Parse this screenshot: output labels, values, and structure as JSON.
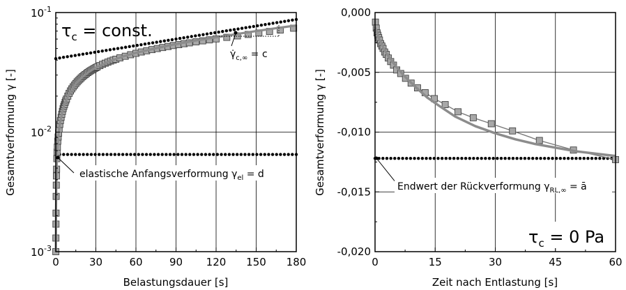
{
  "chart_data": [
    {
      "type": "scatter",
      "panel": "left",
      "xlabel": "Belastungsdauer [s]",
      "ylabel": "Gesamtverformung γ [-]",
      "xlim": [
        0,
        180
      ],
      "ylim": [
        0.001,
        0.1
      ],
      "yscale": "log",
      "grid": true,
      "x_ticks": [
        0,
        30,
        60,
        90,
        120,
        150,
        180
      ],
      "x_tick_labels": [
        "0",
        "30",
        "60",
        "90",
        "120",
        "150",
        "180"
      ],
      "y_ticks": [
        0.001,
        0.01,
        0.1
      ],
      "y_tick_labels": [
        {
          "base": "10",
          "exp": "-3"
        },
        {
          "base": "10",
          "exp": "-2"
        },
        {
          "base": "10",
          "exp": "-1"
        }
      ],
      "series": [
        {
          "role": "measured",
          "marker": "square",
          "color": "#a8a8a8",
          "x": [
            0.05,
            0.1,
            0.15,
            0.2,
            0.3,
            0.4,
            0.5,
            0.6,
            0.8,
            1,
            1.2,
            1.5,
            1.8,
            2.1,
            2.5,
            3,
            3.5,
            4,
            4.5,
            5,
            5.5,
            6,
            6.5,
            7,
            7.5,
            8,
            9,
            10,
            11,
            12,
            13,
            14,
            15,
            16,
            17,
            18,
            19,
            20,
            21,
            22,
            23,
            24,
            25,
            26,
            27,
            28,
            29,
            30,
            31,
            33,
            35,
            37,
            39,
            41,
            43,
            45,
            48,
            52,
            56,
            60,
            64,
            68,
            72,
            76,
            80,
            84,
            88,
            92,
            96,
            100,
            105,
            110,
            115,
            120,
            128,
            136,
            144,
            152,
            160,
            168,
            178
          ],
          "y": [
            0.001,
            0.0013,
            0.0017,
            0.0021,
            0.0029,
            0.0036,
            0.0043,
            0.0049,
            0.006,
            0.0068,
            0.0075,
            0.0084,
            0.0091,
            0.0098,
            0.0106,
            0.0116,
            0.0125,
            0.0133,
            0.0141,
            0.0149,
            0.0157,
            0.0164,
            0.017,
            0.0177,
            0.0183,
            0.0189,
            0.02,
            0.0211,
            0.0221,
            0.023,
            0.0239,
            0.0247,
            0.0255,
            0.0263,
            0.027,
            0.0277,
            0.0284,
            0.0291,
            0.0297,
            0.0303,
            0.0309,
            0.0315,
            0.0321,
            0.0326,
            0.0331,
            0.0336,
            0.0341,
            0.0346,
            0.0351,
            0.036,
            0.0369,
            0.0377,
            0.0385,
            0.0393,
            0.04,
            0.0407,
            0.0418,
            0.0431,
            0.0444,
            0.0456,
            0.0468,
            0.0479,
            0.049,
            0.05,
            0.051,
            0.052,
            0.053,
            0.0539,
            0.0549,
            0.0558,
            0.0569,
            0.058,
            0.0591,
            0.0602,
            0.062,
            0.0638,
            0.0656,
            0.0675,
            0.0695,
            0.0715,
            0.074
          ]
        },
        {
          "role": "model",
          "line": "solid",
          "color": "#8c8c8c",
          "x": [
            0.05,
            0.2,
            0.5,
            1,
            2,
            3,
            5,
            7,
            10,
            15,
            20,
            25,
            30,
            40,
            50,
            60,
            75,
            90,
            105,
            120,
            135,
            150,
            165,
            180
          ],
          "y": [
            0.001,
            0.0022,
            0.0042,
            0.0068,
            0.0096,
            0.0116,
            0.0149,
            0.0176,
            0.021,
            0.0255,
            0.029,
            0.032,
            0.0346,
            0.039,
            0.0428,
            0.046,
            0.0503,
            0.0545,
            0.0584,
            0.062,
            0.066,
            0.07,
            0.074,
            0.078
          ]
        },
        {
          "role": "asymptote-creep",
          "line": "dotted",
          "color": "#000000",
          "x": [
            0,
            180
          ],
          "y": [
            0.0412,
            0.0875
          ]
        },
        {
          "role": "elastic-level",
          "line": "dotted",
          "color": "#000000",
          "x": [
            0,
            180
          ],
          "y": [
            0.0065,
            0.0065
          ]
        }
      ],
      "annotations": {
        "condition": {
          "symbol": "τ",
          "sub": "c",
          "rest": " = const."
        },
        "slope": {
          "symbol": "γ̇",
          "sub": "c,∞",
          "rest": " = c"
        },
        "elastic": {
          "text": "elastische Anfangsverformung γ",
          "sub": "el",
          "rest": " = d"
        }
      }
    },
    {
      "type": "scatter",
      "panel": "right",
      "xlabel": "Zeit nach Entlastung [s]",
      "ylabel": "Gesamtverformung γ [-]",
      "xlim": [
        0,
        60
      ],
      "ylim": [
        -0.02,
        0.0
      ],
      "grid": true,
      "x_ticks": [
        0,
        15,
        30,
        45,
        60
      ],
      "x_tick_labels": [
        "0",
        "15",
        "30",
        "45",
        "60"
      ],
      "y_ticks": [
        0.0,
        -0.005,
        -0.01,
        -0.015,
        -0.02
      ],
      "y_tick_labels": [
        "0,000",
        "-0,005",
        "-0,010",
        "-0,015",
        "-0,020"
      ],
      "series": [
        {
          "role": "measured",
          "marker": "square",
          "color": "#a8a8a8",
          "x": [
            0.1,
            0.3,
            0.5,
            0.7,
            0.9,
            1.1,
            1.4,
            1.7,
            2.0,
            2.4,
            2.8,
            3.3,
            3.9,
            4.6,
            5.4,
            6.4,
            7.6,
            9.0,
            10.6,
            12.5,
            14.8,
            17.5,
            20.7,
            24.5,
            29.0,
            34.3,
            41.0,
            49.5,
            60.0
          ],
          "y": [
            -0.0008,
            -0.0013,
            -0.0017,
            -0.0019,
            -0.0021,
            -0.0023,
            -0.0026,
            -0.0028,
            -0.003,
            -0.0033,
            -0.0035,
            -0.0038,
            -0.0041,
            -0.0044,
            -0.0048,
            -0.0051,
            -0.0055,
            -0.0059,
            -0.0063,
            -0.0067,
            -0.0072,
            -0.0077,
            -0.0083,
            -0.0088,
            -0.0093,
            -0.0099,
            -0.0107,
            -0.0115,
            -0.0123
          ]
        },
        {
          "role": "model",
          "line": "solid",
          "color": "#8c8c8c",
          "x": [
            0,
            1,
            2,
            3,
            5,
            7,
            10,
            13,
            16,
            20,
            25,
            30,
            35,
            40,
            45,
            50,
            55,
            60
          ],
          "y": [
            -0.0012,
            -0.0022,
            -0.0029,
            -0.0035,
            -0.0044,
            -0.0052,
            -0.0062,
            -0.0071,
            -0.0078,
            -0.0087,
            -0.0095,
            -0.0101,
            -0.0106,
            -0.011,
            -0.0113,
            -0.0116,
            -0.0118,
            -0.012
          ]
        },
        {
          "role": "final-value",
          "line": "dotted",
          "color": "#000000",
          "x": [
            0,
            60
          ],
          "y": [
            -0.0122,
            -0.0122
          ]
        }
      ],
      "annotations": {
        "final": {
          "text": "Endwert der Rückverformung γ",
          "sub": "RL,∞",
          "rest": " = ā"
        },
        "condition": {
          "symbol": "τ",
          "sub": "c",
          "rest": " = 0 Pa"
        }
      }
    }
  ]
}
